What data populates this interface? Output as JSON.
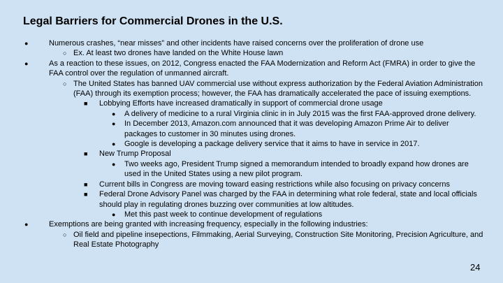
{
  "title": "Legal Barriers for Commercial Drones in the U.S.",
  "page_number": "24",
  "bullets": [
    {
      "text": "Numerous crashes, “near misses” and other incidents have raised concerns over the proliferation of drone use",
      "children": [
        {
          "text": "Ex. At least two drones have landed on the White House lawn",
          "children": []
        }
      ]
    },
    {
      "text": "As a reaction to these issues, on 2012, Congress enacted the FAA Modernization and Reform Act (FMRA) in order to give the FAA control over the regulation of unmanned aircraft.",
      "children": [
        {
          "text": "The United States has banned UAV commercial use without express authorization by the Federal Aviation Administration (FAA) through its exemption process; however, the FAA has dramatically accelerated the pace of issuing exemptions.",
          "children": [
            {
              "text": "Lobbying Efforts have increased dramatically in support of commercial drone usage",
              "children": [
                {
                  "text": "A delivery of medicine to a rural Virginia clinic in in July 2015 was the first FAA-approved drone delivery.",
                  "children": []
                },
                {
                  "text": "In December 2013, Amazon.com announced that it was developing Amazon Prime Air to deliver packages to customer in 30 minutes using drones.",
                  "children": []
                },
                {
                  "text": "Google is developing a package delivery service that it aims to have in service in 2017.",
                  "children": []
                }
              ]
            },
            {
              "text": "New Trump Proposal",
              "children": [
                {
                  "text": "Two weeks ago, President Trump signed a memorandum intended to broadly expand how drones are used in the United States using a new pilot program.",
                  "children": []
                }
              ]
            },
            {
              "text": "Current bills in Congress are moving toward easing restrictions while also focusing on privacy concerns",
              "children": []
            },
            {
              "text": "Federal Drone Advisory Panel was charged by the FAA in determining what role federal, state and local officials should play in regulating drones buzzing over communities at low altitudes.",
              "children": [
                {
                  "text": "Met this past week to continue development of regulations",
                  "children": []
                }
              ]
            }
          ]
        }
      ]
    },
    {
      "text": "Exemptions are being granted with increasing frequency, especially in the following industries:",
      "children": [
        {
          "text": "Oil field and pipeline insepections, Filmmaking, Aerial Surveying, Construction Site Monitoring, Precision Agriculture, and Real Estate Photography",
          "children": []
        }
      ]
    }
  ]
}
